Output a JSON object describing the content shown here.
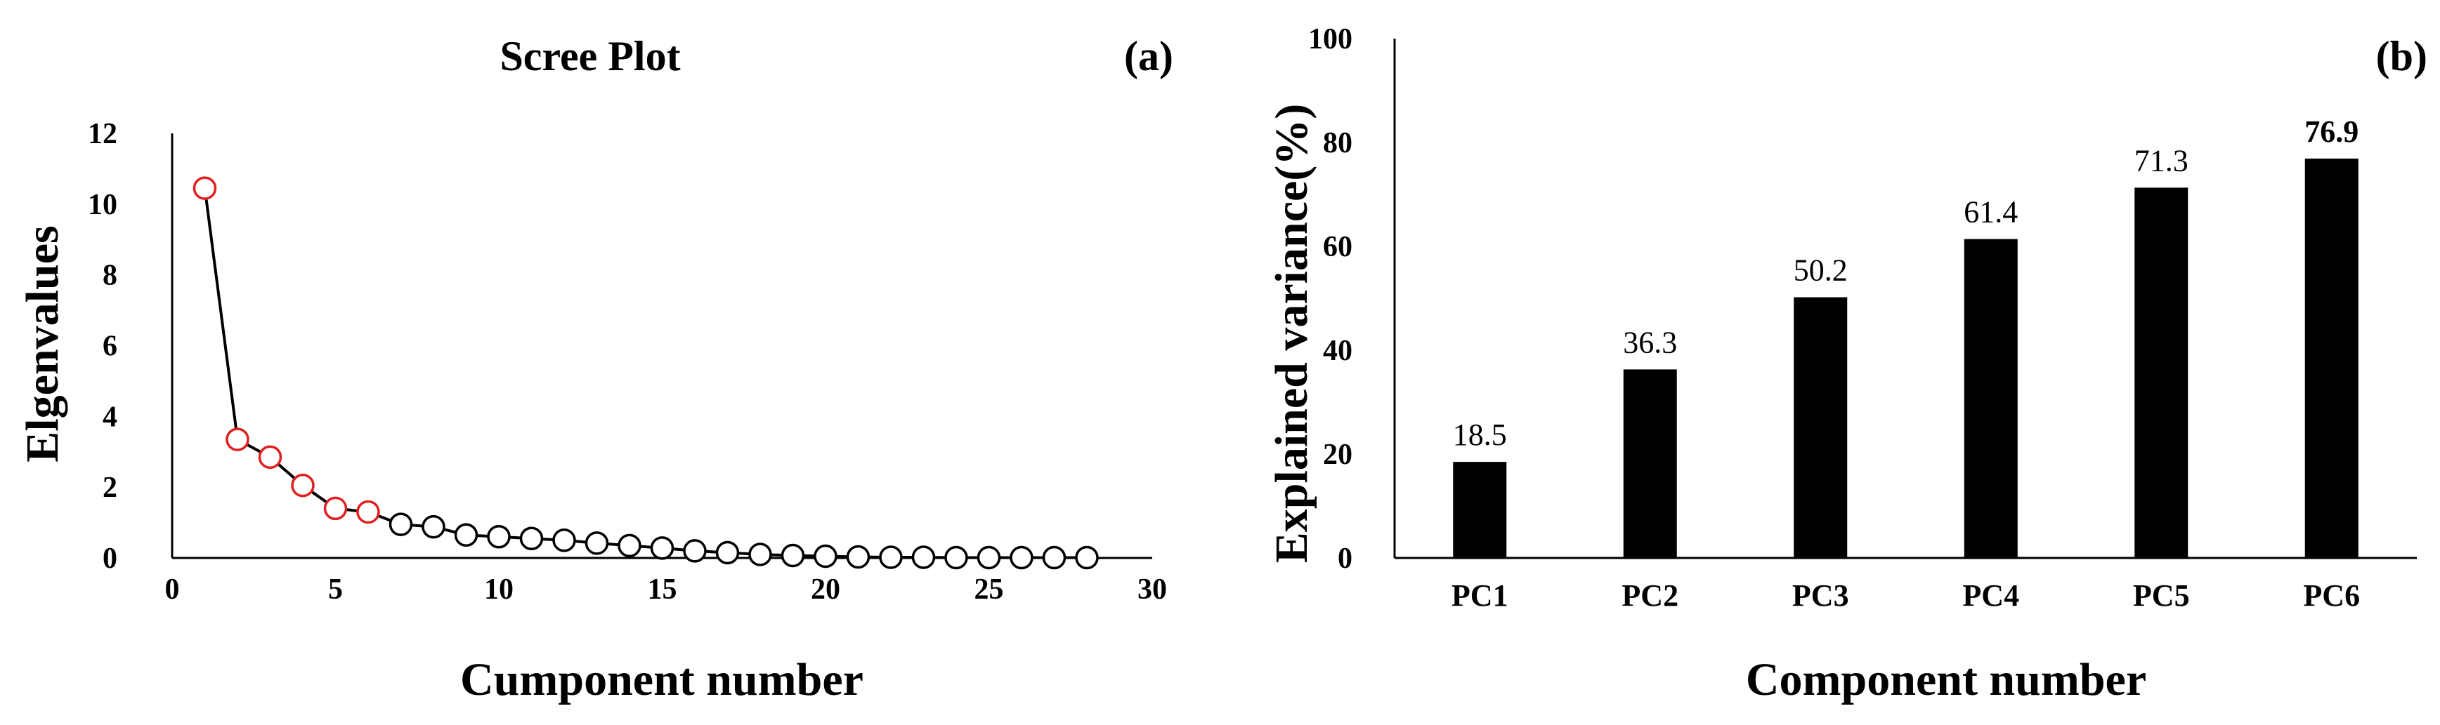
{
  "chart_data": [
    {
      "type": "line",
      "title": "Scree Plot",
      "panel_label": "(a)",
      "xlabel": "Cumponent number",
      "ylabel": "Elgenvalues",
      "xlim": [
        0,
        30
      ],
      "ylim": [
        0,
        12
      ],
      "xticks": [
        0,
        5,
        10,
        15,
        20,
        25,
        30
      ],
      "yticks": [
        0,
        2,
        4,
        6,
        8,
        10,
        12
      ],
      "grid": false,
      "highlight_count": 6,
      "colors": {
        "line": "#000000",
        "marker": "#000000",
        "highlight": "#e02020"
      },
      "series": [
        {
          "x": [
            1,
            2,
            3,
            4,
            5,
            6,
            7,
            8,
            9,
            10,
            11,
            12,
            13,
            14,
            15,
            16,
            17,
            18,
            19,
            20,
            21,
            22,
            23,
            24,
            25,
            26,
            27,
            28
          ],
          "values": [
            10.45,
            3.35,
            2.85,
            2.05,
            1.4,
            1.3,
            0.95,
            0.88,
            0.65,
            0.6,
            0.55,
            0.5,
            0.42,
            0.35,
            0.28,
            0.2,
            0.15,
            0.1,
            0.07,
            0.05,
            0.03,
            0.02,
            0.02,
            0.01,
            0.01,
            0.01,
            0.01,
            0.01
          ]
        }
      ]
    },
    {
      "type": "bar",
      "title": "",
      "panel_label": "(b)",
      "xlabel": "Component number",
      "ylabel": "Explained  variance(%)",
      "ylim": [
        0,
        100
      ],
      "yticks": [
        0,
        20,
        40,
        60,
        80,
        100
      ],
      "grid": false,
      "categories": [
        "PC1",
        "PC2",
        "PC3",
        "PC4",
        "PC5",
        "PC6"
      ],
      "values": [
        18.5,
        36.3,
        50.2,
        61.4,
        71.3,
        76.9
      ],
      "data_labels": [
        "18.5",
        "36.3",
        "50.2",
        "61.4",
        "71.3",
        "76.9"
      ],
      "highlight_index": 5,
      "colors": {
        "bar": "#000000",
        "label": "#000000",
        "highlight_label": "#e02020"
      }
    }
  ]
}
